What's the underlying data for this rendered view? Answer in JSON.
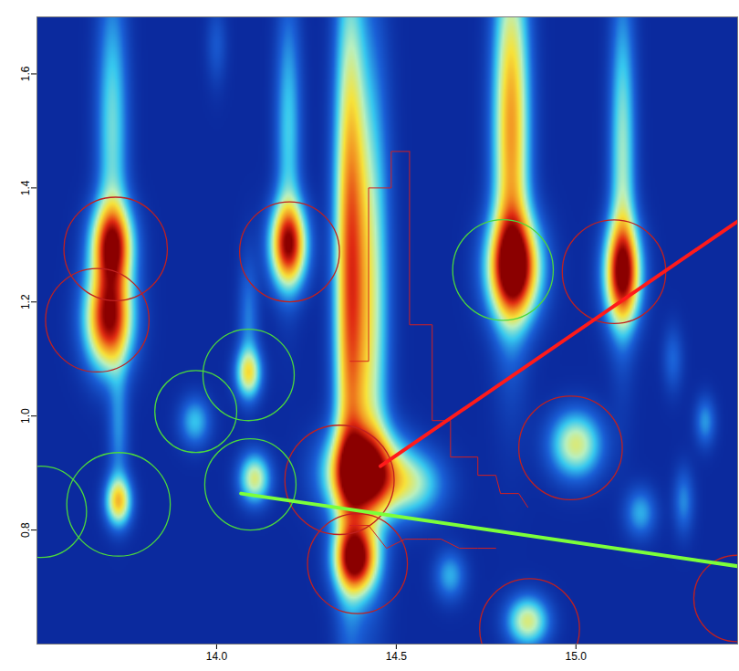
{
  "chart_data": {
    "type": "heatmap",
    "xlim": [
      13.5,
      15.45
    ],
    "ylim": [
      0.6,
      1.7
    ],
    "xticks": [
      {
        "value": 14,
        "label": "14.0"
      },
      {
        "value": 14.5,
        "label": "14.5"
      },
      {
        "value": 15,
        "label": "15.0"
      }
    ],
    "yticks": [
      0.8,
      {
        "value": 1,
        "label": "1.0"
      },
      1.2,
      1.4,
      1.6
    ],
    "grid": false,
    "zlim": [
      0,
      100
    ],
    "peaks": [
      {
        "x": 13.709,
        "y": 1.3,
        "height": 85,
        "x_spread": 0.04,
        "y_spread": 0.05
      },
      {
        "x": 13.7,
        "y": 1.17,
        "height": 95,
        "x_spread": 0.045,
        "y_spread": 0.06
      },
      {
        "x": 13.71,
        "y": 1.5,
        "height": 35,
        "x_spread": 0.03,
        "y_spread": 0.18
      },
      {
        "x": 13.727,
        "y": 0.85,
        "height": 60,
        "x_spread": 0.025,
        "y_spread": 0.03
      },
      {
        "x": 13.727,
        "y": 0.98,
        "height": 20,
        "x_spread": 0.02,
        "y_spread": 0.08
      },
      {
        "x": 14.089,
        "y": 1.075,
        "height": 50,
        "x_spread": 0.025,
        "y_spread": 0.03
      },
      {
        "x": 14.089,
        "y": 1.17,
        "height": 18,
        "x_spread": 0.02,
        "y_spread": 0.08
      },
      {
        "x": 13.94,
        "y": 0.99,
        "height": 28,
        "x_spread": 0.03,
        "y_spread": 0.03
      },
      {
        "x": 14.106,
        "y": 0.89,
        "height": 50,
        "x_spread": 0.03,
        "y_spread": 0.03
      },
      {
        "x": 14.2,
        "y": 1.3,
        "height": 90,
        "x_spread": 0.035,
        "y_spread": 0.05
      },
      {
        "x": 14.2,
        "y": 1.5,
        "height": 30,
        "x_spread": 0.025,
        "y_spread": 0.16
      },
      {
        "x": 14.41,
        "y": 0.9,
        "height": 100,
        "x_spread": 0.07,
        "y_spread": 0.05
      },
      {
        "x": 14.37,
        "y": 1.25,
        "height": 75,
        "x_spread": 0.03,
        "y_spread": 0.35
      },
      {
        "x": 14.43,
        "y": 1.2,
        "height": 45,
        "x_spread": 0.035,
        "y_spread": 0.3
      },
      {
        "x": 14.55,
        "y": 0.88,
        "height": 35,
        "x_spread": 0.06,
        "y_spread": 0.04
      },
      {
        "x": 14.387,
        "y": 0.75,
        "height": 90,
        "x_spread": 0.04,
        "y_spread": 0.04
      },
      {
        "x": 14.828,
        "y": 1.26,
        "height": 100,
        "x_spread": 0.05,
        "y_spread": 0.06
      },
      {
        "x": 14.82,
        "y": 1.5,
        "height": 70,
        "x_spread": 0.035,
        "y_spread": 0.22
      },
      {
        "x": 15.13,
        "y": 1.25,
        "height": 90,
        "x_spread": 0.035,
        "y_spread": 0.06
      },
      {
        "x": 15.13,
        "y": 1.45,
        "height": 40,
        "x_spread": 0.025,
        "y_spread": 0.2
      },
      {
        "x": 15.0,
        "y": 0.95,
        "height": 50,
        "x_spread": 0.05,
        "y_spread": 0.04
      },
      {
        "x": 14.866,
        "y": 0.64,
        "height": 50,
        "x_spread": 0.04,
        "y_spread": 0.03
      },
      {
        "x": 15.18,
        "y": 0.83,
        "height": 25,
        "x_spread": 0.03,
        "y_spread": 0.03
      },
      {
        "x": 15.36,
        "y": 0.99,
        "height": 22,
        "x_spread": 0.02,
        "y_spread": 0.03
      },
      {
        "x": 15.3,
        "y": 0.85,
        "height": 20,
        "x_spread": 0.02,
        "y_spread": 0.04
      },
      {
        "x": 14.65,
        "y": 0.72,
        "height": 25,
        "x_spread": 0.03,
        "y_spread": 0.03
      },
      {
        "x": 14.0,
        "y": 1.65,
        "height": 12,
        "x_spread": 0.02,
        "y_spread": 0.05
      },
      {
        "x": 15.27,
        "y": 1.1,
        "height": 15,
        "x_spread": 0.02,
        "y_spread": 0.04
      }
    ],
    "circles": [
      {
        "x": 13.511,
        "y": 0.832,
        "r": 0.127,
        "color": "#4cd93c"
      },
      {
        "x": 13.727,
        "y": 0.845,
        "r": 0.144,
        "color": "#4cd93c"
      },
      {
        "x": 13.942,
        "y": 1.008,
        "r": 0.114,
        "color": "#4cd93c"
      },
      {
        "x": 14.089,
        "y": 1.072,
        "r": 0.127,
        "color": "#4cd93c"
      },
      {
        "x": 14.094,
        "y": 0.88,
        "r": 0.127,
        "color": "#4cd93c"
      },
      {
        "x": 14.797,
        "y": 1.256,
        "r": 0.14,
        "color": "#4cd93c"
      },
      {
        "x": 13.719,
        "y": 1.293,
        "r": 0.144,
        "color": "#c02020"
      },
      {
        "x": 13.668,
        "y": 1.168,
        "r": 0.144,
        "color": "#c02020"
      },
      {
        "x": 14.203,
        "y": 1.288,
        "r": 0.139,
        "color": "#c02020"
      },
      {
        "x": 14.342,
        "y": 0.888,
        "r": 0.152,
        "color": "#c02020"
      },
      {
        "x": 14.392,
        "y": 0.741,
        "r": 0.139,
        "color": "#c02020"
      },
      {
        "x": 15.106,
        "y": 1.253,
        "r": 0.144,
        "color": "#c02020"
      },
      {
        "x": 14.985,
        "y": 0.944,
        "r": 0.144,
        "color": "#c02020"
      },
      {
        "x": 14.871,
        "y": 0.627,
        "r": 0.139,
        "color": "#c02020"
      },
      {
        "x": 15.448,
        "y": 0.68,
        "r": 0.12,
        "color": "#c02020"
      }
    ],
    "paths": [
      {
        "color": "#d42020",
        "marker": "square",
        "x": [
          14.537,
          14.486,
          14.486,
          14.423,
          14.423,
          14.372
        ],
        "y": [
          1.464,
          1.464,
          1.4,
          1.4,
          1.096,
          1.096
        ]
      },
      {
        "color": "#d42020",
        "marker": "square",
        "x": [
          14.537,
          14.537,
          14.6,
          14.6,
          14.651,
          14.651,
          14.727,
          14.727,
          14.777,
          14.79,
          14.841,
          14.866
        ],
        "y": [
          1.464,
          1.16,
          1.16,
          0.992,
          0.992,
          0.928,
          0.928,
          0.896,
          0.896,
          0.864,
          0.864,
          0.84
        ]
      },
      {
        "color": "#d42020",
        "marker": "square",
        "x": [
          14.372,
          14.423,
          14.473,
          14.524,
          14.587,
          14.625,
          14.676,
          14.727,
          14.777
        ],
        "y": [
          0.808,
          0.808,
          0.768,
          0.784,
          0.784,
          0.784,
          0.768,
          0.768,
          0.768
        ]
      }
    ],
    "lines": [
      {
        "color": "#ff1a1a",
        "x": [
          14.456,
          15.456
        ],
        "y": [
          0.912,
          1.344
        ]
      },
      {
        "color": "#7cff3a",
        "x": [
          14.068,
          15.456
        ],
        "y": [
          0.864,
          0.736
        ]
      }
    ]
  }
}
